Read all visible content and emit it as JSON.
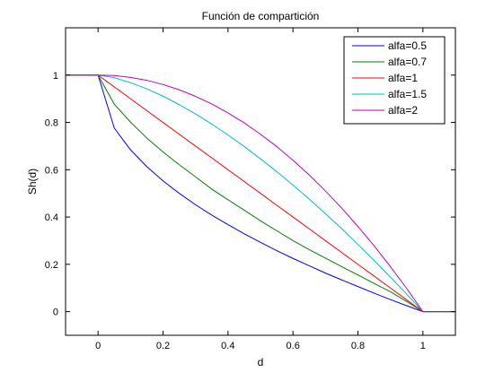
{
  "chart_data": {
    "type": "line",
    "title": "Función de compartición",
    "xlabel": "d",
    "ylabel": "Sh(d)",
    "xlim": [
      -0.1,
      1.1
    ],
    "ylim": [
      -0.1,
      1.2
    ],
    "xticks": [
      0,
      0.2,
      0.4,
      0.6,
      0.8,
      1
    ],
    "xtick_labels": [
      "0",
      "0.2",
      "0.4",
      "0.6",
      "0.8",
      "1"
    ],
    "yticks": [
      0,
      0.2,
      0.4,
      0.6,
      0.8,
      1
    ],
    "ytick_labels": [
      "0",
      "0.2",
      "0.4",
      "0.6",
      "0.8",
      "1"
    ],
    "grid": false,
    "legend_position": "top-right",
    "x": [
      -0.1,
      0,
      0.05,
      0.1,
      0.15,
      0.2,
      0.25,
      0.3,
      0.35,
      0.4,
      0.45,
      0.5,
      0.55,
      0.6,
      0.65,
      0.7,
      0.75,
      0.8,
      0.85,
      0.9,
      0.95,
      1,
      1.1
    ],
    "series": [
      {
        "name": "alfa=0.5",
        "color": "#0000ff",
        "values": [
          1,
          1,
          0.776,
          0.684,
          0.613,
          0.553,
          0.5,
          0.452,
          0.408,
          0.368,
          0.329,
          0.293,
          0.258,
          0.225,
          0.194,
          0.163,
          0.134,
          0.106,
          0.078,
          0.051,
          0.025,
          0,
          0
        ]
      },
      {
        "name": "alfa=0.7",
        "color": "#008000",
        "values": [
          1,
          1,
          0.877,
          0.801,
          0.734,
          0.675,
          0.621,
          0.57,
          0.518,
          0.473,
          0.429,
          0.384,
          0.342,
          0.3,
          0.262,
          0.226,
          0.19,
          0.155,
          0.119,
          0.084,
          0.043,
          0,
          0
        ]
      },
      {
        "name": "alfa=1",
        "color": "#ff0000",
        "values": [
          1,
          1,
          0.95,
          0.9,
          0.85,
          0.8,
          0.75,
          0.7,
          0.65,
          0.6,
          0.55,
          0.5,
          0.45,
          0.4,
          0.35,
          0.3,
          0.25,
          0.2,
          0.15,
          0.1,
          0.05,
          0,
          0
        ]
      },
      {
        "name": "alfa=1.5",
        "color": "#00bfbf",
        "values": [
          1,
          1,
          0.989,
          0.968,
          0.942,
          0.911,
          0.875,
          0.836,
          0.793,
          0.747,
          0.698,
          0.646,
          0.592,
          0.535,
          0.476,
          0.414,
          0.351,
          0.284,
          0.216,
          0.146,
          0.074,
          0,
          0
        ]
      },
      {
        "name": "alfa=2",
        "color": "#bf00bf",
        "values": [
          1,
          1,
          0.998,
          0.99,
          0.978,
          0.96,
          0.938,
          0.91,
          0.878,
          0.84,
          0.798,
          0.75,
          0.698,
          0.64,
          0.578,
          0.51,
          0.438,
          0.36,
          0.278,
          0.19,
          0.098,
          0,
          0
        ]
      }
    ]
  }
}
